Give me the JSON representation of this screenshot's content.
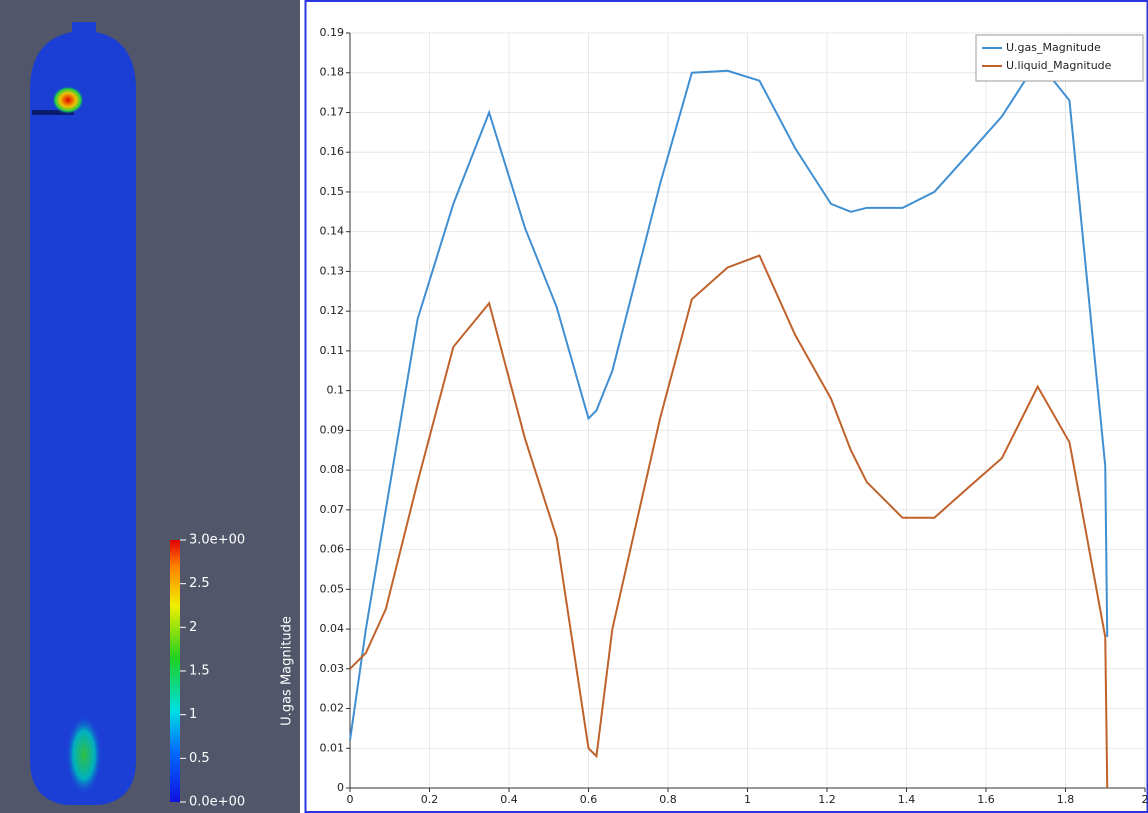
{
  "render_view": {
    "color_legend": {
      "title": "U.gas Magnitude",
      "range": [
        0,
        3
      ],
      "ticks": [
        {
          "value": 3,
          "label": "3.0e+00"
        },
        2.5,
        2,
        1.5,
        1,
        0.5,
        {
          "value": 0,
          "label": "0.0e+00"
        }
      ]
    }
  },
  "chart_data": {
    "type": "line",
    "x": [
      0,
      0.04,
      0.09,
      0.17,
      0.26,
      0.35,
      0.44,
      0.52,
      0.6,
      0.62,
      0.66,
      0.78,
      0.86,
      0.95,
      1.03,
      1.12,
      1.21,
      1.26,
      1.3,
      1.39,
      1.47,
      1.56,
      1.64,
      1.73,
      1.81,
      1.9,
      1.905
    ],
    "series": [
      {
        "name": "U.gas_Magnitude",
        "color": "#3f8fd2",
        "values": [
          0.012,
          0.04,
          0.07,
          0.118,
          0.147,
          0.17,
          0.141,
          0.121,
          0.093,
          0.095,
          0.105,
          0.152,
          0.18,
          0.1805,
          0.178,
          0.161,
          0.147,
          0.145,
          0.146,
          0.146,
          0.15,
          0.16,
          0.169,
          0.183,
          0.173,
          0.081,
          0.038
        ]
      },
      {
        "name": "U.liquid_Magnitude",
        "color": "#c0622b",
        "values": [
          0.03,
          0.034,
          0.045,
          0.077,
          0.111,
          0.122,
          0.088,
          0.063,
          0.01,
          0.008,
          0.04,
          0.093,
          0.123,
          0.131,
          0.134,
          0.114,
          0.098,
          0.085,
          0.077,
          0.068,
          0.068,
          0.076,
          0.083,
          0.101,
          0.087,
          0.038,
          0
        ]
      }
    ],
    "xlim": [
      0,
      2
    ],
    "xticks": [
      0,
      0.2,
      0.4,
      0.6,
      0.8,
      1,
      1.2,
      1.4,
      1.6,
      1.8,
      2
    ],
    "ylim": [
      0,
      0.19
    ],
    "yticks": [
      0,
      0.01,
      0.02,
      0.03,
      0.04,
      0.05,
      0.06,
      0.07,
      0.08,
      0.09,
      0.1,
      0.11,
      0.12,
      0.13,
      0.14,
      0.15,
      0.16,
      0.17,
      0.18,
      0.19
    ],
    "grid": true,
    "legend": "top-right"
  }
}
